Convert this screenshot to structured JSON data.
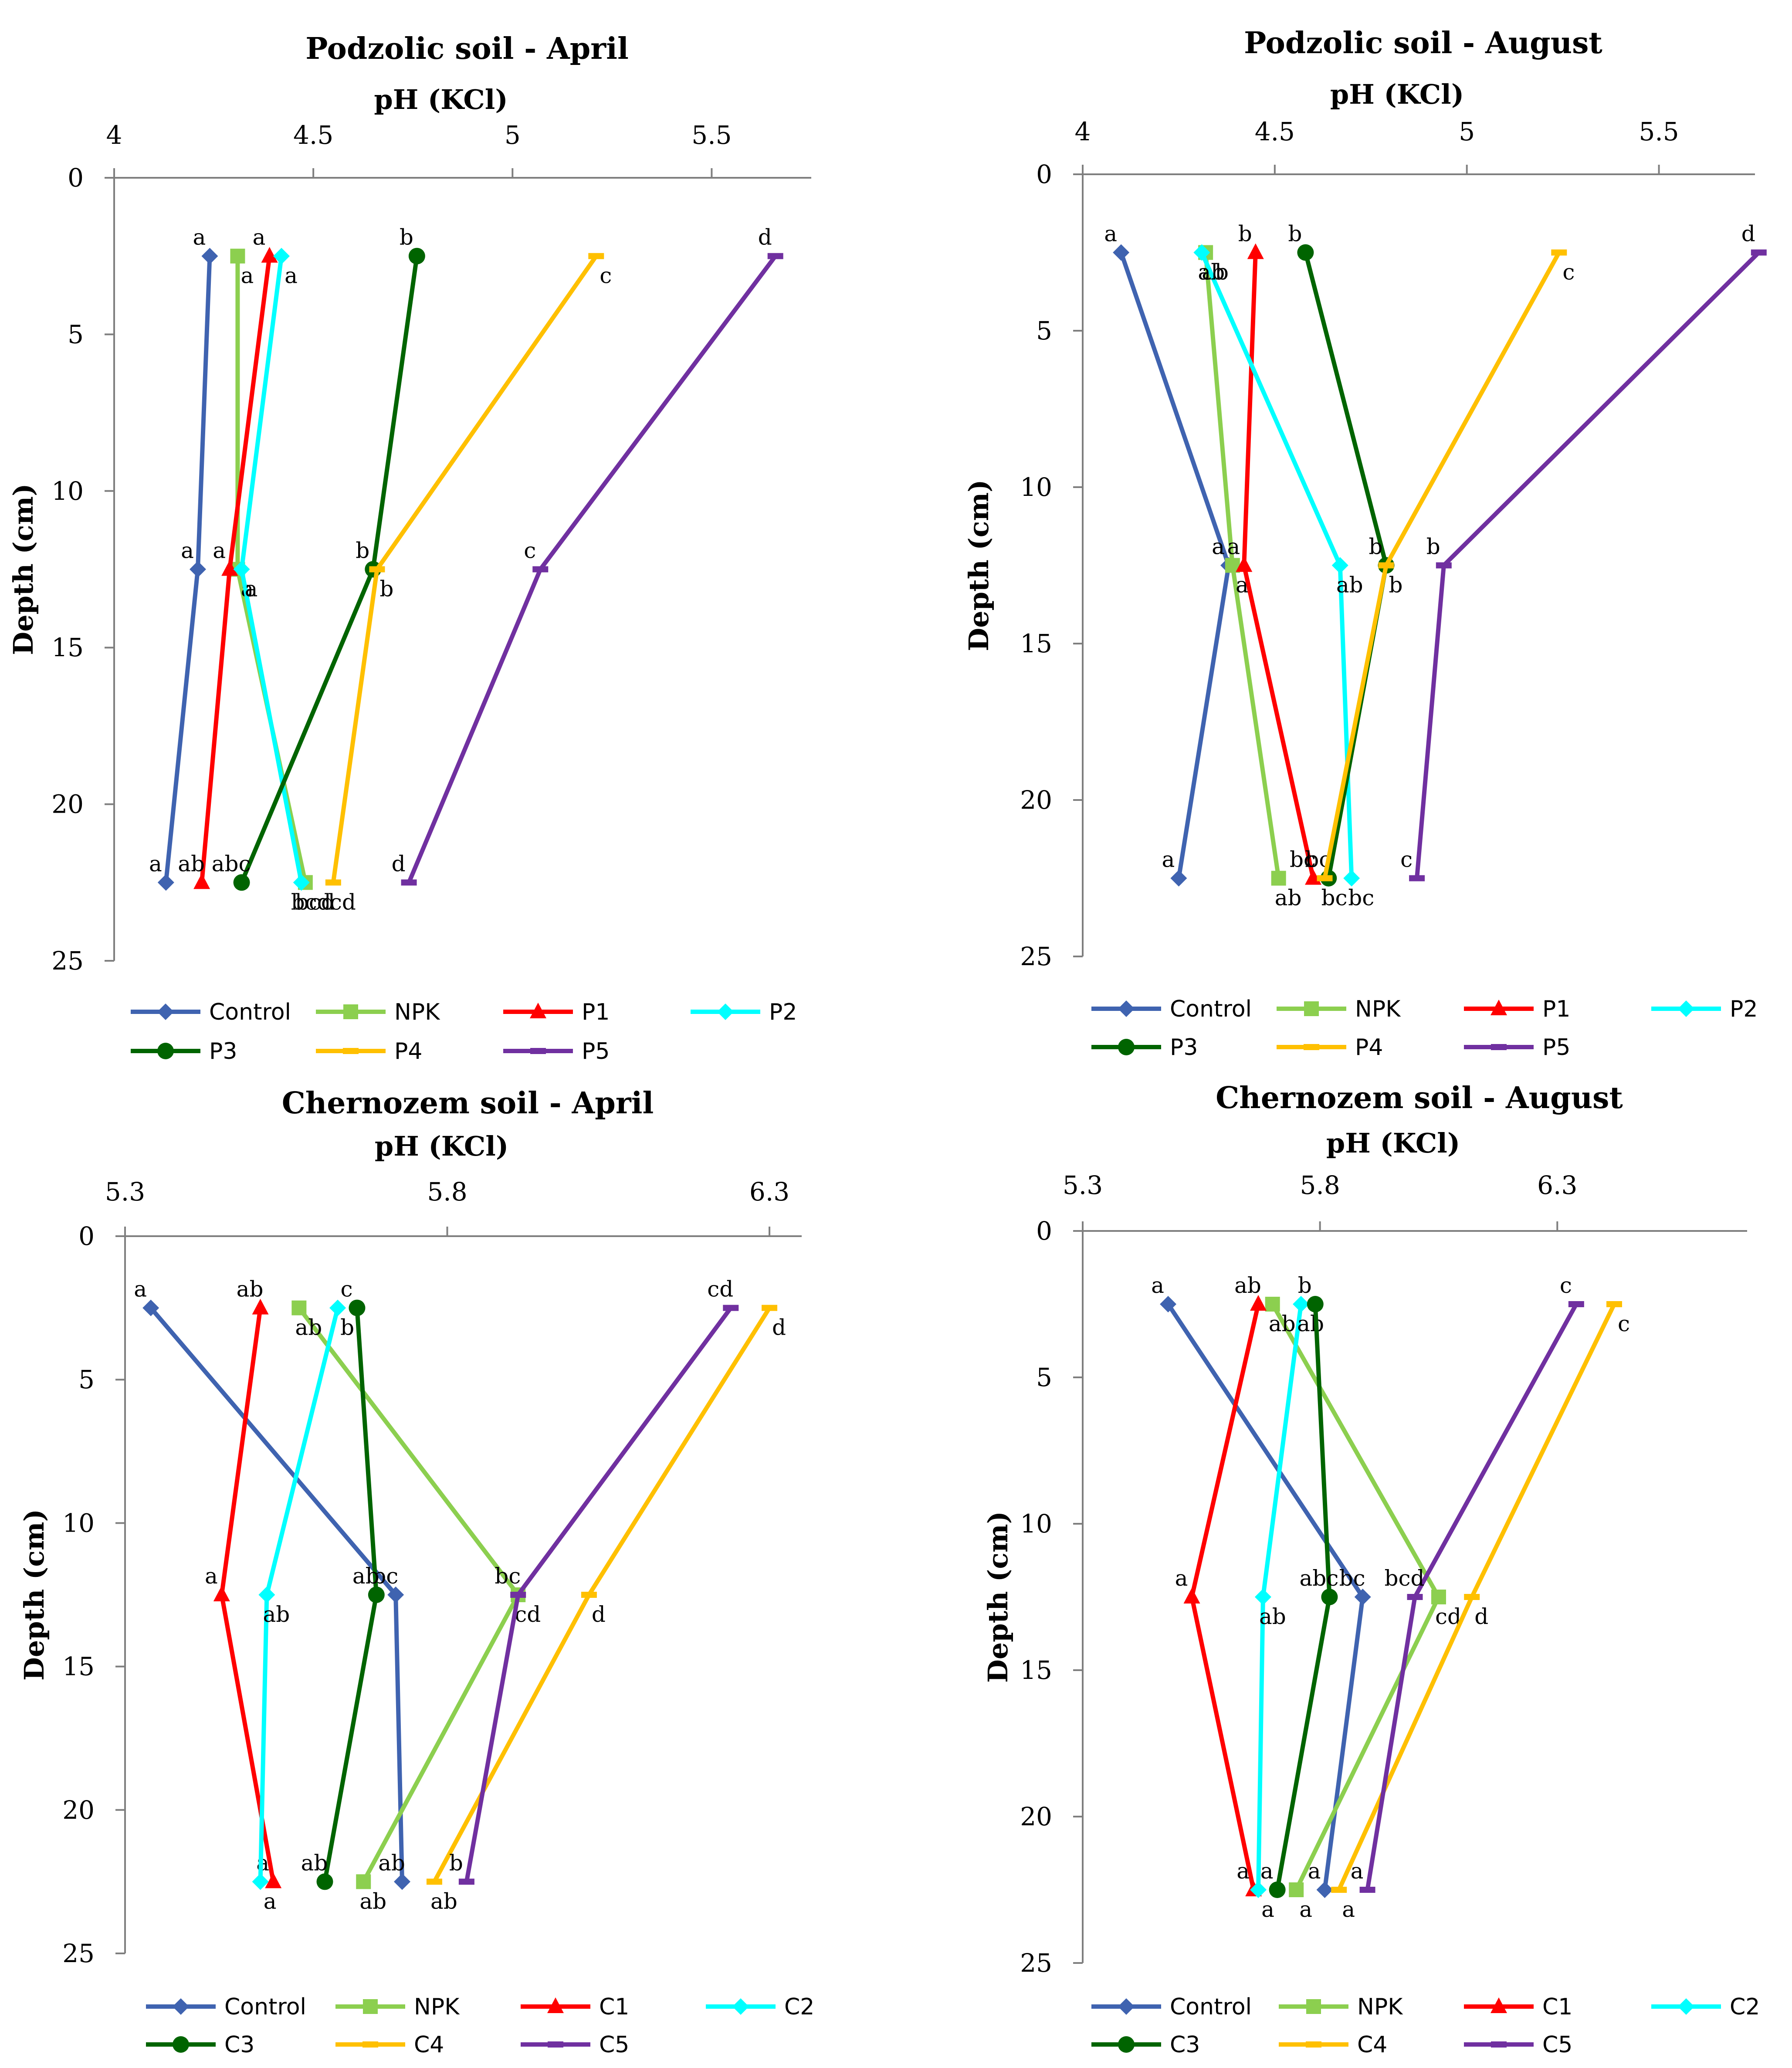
{
  "colors": {
    "Control": "#3f63b0",
    "NPK": "#8ccf4f",
    "P1": "#ff0000",
    "P2": "#00ffff",
    "P3": "#006400",
    "P4": "#ffc000",
    "P5": "#7030a0",
    "C1": "#ff0000",
    "C2": "#00ffff",
    "C3": "#006400",
    "C4": "#ffc000",
    "C5": "#7030a0"
  },
  "chart_data": [
    {
      "type": "line",
      "title": "Podzolic soil - April",
      "xlabel": "pH (KCl)",
      "ylabel": "Depth (cm)",
      "xlim": [
        4,
        5.75
      ],
      "ylim": [
        0,
        25
      ],
      "xticks": [
        "4",
        "4.5",
        "5",
        "5.5"
      ],
      "yticks": [
        "0",
        "5",
        "10",
        "15",
        "20",
        "25"
      ],
      "depths": [
        2.5,
        12.5,
        22.5
      ],
      "series": [
        {
          "name": "Control",
          "marker": "diamond",
          "values": [
            4.24,
            4.21,
            4.13
          ],
          "labels": [
            "a",
            "a",
            "a"
          ]
        },
        {
          "name": "NPK",
          "marker": "square",
          "values": [
            4.31,
            4.31,
            4.48
          ],
          "labels": [
            "a",
            "a",
            "bcd"
          ]
        },
        {
          "name": "P1",
          "marker": "triangle",
          "values": [
            4.39,
            4.29,
            4.22
          ],
          "labels": [
            "a",
            "a",
            "ab"
          ]
        },
        {
          "name": "P2",
          "marker": "diamond",
          "values": [
            4.42,
            4.32,
            4.47
          ],
          "labels": [
            "a",
            "a",
            "bcd"
          ]
        },
        {
          "name": "P3",
          "marker": "circle",
          "values": [
            4.76,
            4.65,
            4.32
          ],
          "labels": [
            "b",
            "b",
            "abc"
          ]
        },
        {
          "name": "P4",
          "marker": "dash",
          "values": [
            5.21,
            4.66,
            4.55
          ],
          "labels": [
            "c",
            "b",
            "cd"
          ]
        },
        {
          "name": "P5",
          "marker": "dash",
          "values": [
            5.66,
            5.07,
            4.74
          ],
          "labels": [
            "d",
            "c",
            "d"
          ]
        }
      ],
      "legend": "bottom"
    },
    {
      "type": "line",
      "title": "Podzolic soil - August",
      "xlabel": "pH (KCl)",
      "ylabel": "Depth (cm)",
      "xlim": [
        4,
        5.75
      ],
      "ylim": [
        0,
        25
      ],
      "xticks": [
        "4",
        "4.5",
        "5",
        "5.5"
      ],
      "yticks": [
        "0",
        "5",
        "10",
        "15",
        "20",
        "25"
      ],
      "depths": [
        2.5,
        12.5,
        22.5
      ],
      "series": [
        {
          "name": "Control",
          "marker": "diamond",
          "values": [
            4.1,
            4.38,
            4.25
          ],
          "labels": [
            "a",
            "a",
            "a"
          ]
        },
        {
          "name": "NPK",
          "marker": "square",
          "values": [
            4.32,
            4.39,
            4.51
          ],
          "labels": [
            "ab",
            "a",
            "ab"
          ]
        },
        {
          "name": "P1",
          "marker": "triangle",
          "values": [
            4.45,
            4.42,
            4.6
          ],
          "labels": [
            "b",
            "a",
            "bc"
          ]
        },
        {
          "name": "P2",
          "marker": "diamond",
          "values": [
            4.31,
            4.67,
            4.7
          ],
          "labels": [
            "ab",
            "ab",
            "bc"
          ]
        },
        {
          "name": "P3",
          "marker": "circle",
          "values": [
            4.58,
            4.79,
            4.64
          ],
          "labels": [
            "b",
            "b",
            "bc"
          ]
        },
        {
          "name": "P4",
          "marker": "dash",
          "values": [
            5.24,
            4.79,
            4.63
          ],
          "labels": [
            "c",
            "b",
            "bc"
          ]
        },
        {
          "name": "P5",
          "marker": "dash",
          "values": [
            5.76,
            4.94,
            4.87
          ],
          "labels": [
            "d",
            "b",
            "c"
          ]
        }
      ],
      "legend": "bottom"
    },
    {
      "type": "line",
      "title": "Chernozem soil - April",
      "xlabel": "pH (KCl)",
      "ylabel": "Depth (cm)",
      "xlim": [
        5.3,
        6.35
      ],
      "ylim": [
        0,
        25
      ],
      "xticks": [
        "5.3",
        "5.8",
        "6.3"
      ],
      "yticks": [
        "0",
        "5",
        "10",
        "15",
        "20",
        "25"
      ],
      "depths": [
        2.5,
        12.5,
        22.5
      ],
      "series": [
        {
          "name": "Control",
          "marker": "diamond",
          "values": [
            5.34,
            5.72,
            5.73
          ],
          "labels": [
            "a",
            "bc",
            "ab"
          ]
        },
        {
          "name": "NPK",
          "marker": "square",
          "values": [
            5.57,
            5.91,
            5.67
          ],
          "labels": [
            "ab",
            "cd",
            "ab"
          ]
        },
        {
          "name": "C1",
          "marker": "triangle",
          "values": [
            5.51,
            5.45,
            5.53
          ],
          "labels": [
            "ab",
            "a",
            "a"
          ]
        },
        {
          "name": "C2",
          "marker": "diamond",
          "values": [
            5.63,
            5.52,
            5.51
          ],
          "labels": [
            "b",
            "ab",
            "a"
          ]
        },
        {
          "name": "C3",
          "marker": "circle",
          "values": [
            5.66,
            5.69,
            5.61
          ],
          "labels": [
            "c",
            "ab",
            "ab"
          ]
        },
        {
          "name": "C4",
          "marker": "dash",
          "values": [
            6.3,
            6.02,
            5.78
          ],
          "labels": [
            "d",
            "d",
            "ab"
          ]
        },
        {
          "name": "C5",
          "marker": "dash",
          "values": [
            6.24,
            5.91,
            5.83
          ],
          "labels": [
            "cd",
            "bc",
            "b"
          ]
        }
      ],
      "legend": "bottom"
    },
    {
      "type": "line",
      "title": "Chernozem soil - August",
      "xlabel": "pH (KCl)",
      "ylabel": "Depth (cm)",
      "xlim": [
        5.3,
        6.7
      ],
      "ylim": [
        0,
        25
      ],
      "xticks": [
        "5.3",
        "5.8",
        "6.3"
      ],
      "yticks": [
        "0",
        "5",
        "10",
        "15",
        "20",
        "25"
      ],
      "depths": [
        2.5,
        12.5,
        22.5
      ],
      "series": [
        {
          "name": "Control",
          "marker": "diamond",
          "values": [
            5.48,
            5.89,
            5.81
          ],
          "labels": [
            "a",
            "bc",
            "a"
          ]
        },
        {
          "name": "NPK",
          "marker": "square",
          "values": [
            5.7,
            6.05,
            5.75
          ],
          "labels": [
            "ab",
            "cd",
            "a"
          ]
        },
        {
          "name": "C1",
          "marker": "triangle",
          "values": [
            5.67,
            5.53,
            5.66
          ],
          "labels": [
            "ab",
            "a",
            "a"
          ]
        },
        {
          "name": "C2",
          "marker": "diamond",
          "values": [
            5.76,
            5.68,
            5.67
          ],
          "labels": [
            "ab",
            "ab",
            "a"
          ]
        },
        {
          "name": "C3",
          "marker": "circle",
          "values": [
            5.79,
            5.82,
            5.71
          ],
          "labels": [
            "b",
            "abc",
            "a"
          ]
        },
        {
          "name": "C4",
          "marker": "dash",
          "values": [
            6.42,
            6.12,
            5.84
          ],
          "labels": [
            "c",
            "d",
            "a"
          ]
        },
        {
          "name": "C5",
          "marker": "dash",
          "values": [
            6.34,
            6.0,
            5.9
          ],
          "labels": [
            "c",
            "bcd",
            "a"
          ]
        }
      ],
      "legend": "bottom"
    }
  ]
}
